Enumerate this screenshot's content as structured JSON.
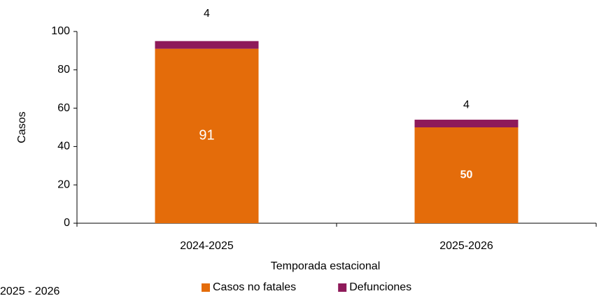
{
  "chart_data": {
    "type": "stacked_bar",
    "categories": [
      "2024-2025",
      "2025-2026"
    ],
    "series": [
      {
        "name": "Casos no fatales",
        "color": "#e46c0a",
        "values": [
          91,
          50
        ]
      },
      {
        "name": "Defunciones",
        "color": "#8e1a5a",
        "values": [
          4,
          4
        ]
      }
    ],
    "xlabel": "Temporada estacional",
    "ylabel": "Casos",
    "ylim": [
      0,
      100
    ],
    "yticks": [
      0,
      20,
      40,
      60,
      80,
      100
    ],
    "footnote": "2025 - 2026",
    "legend": "bottom"
  }
}
